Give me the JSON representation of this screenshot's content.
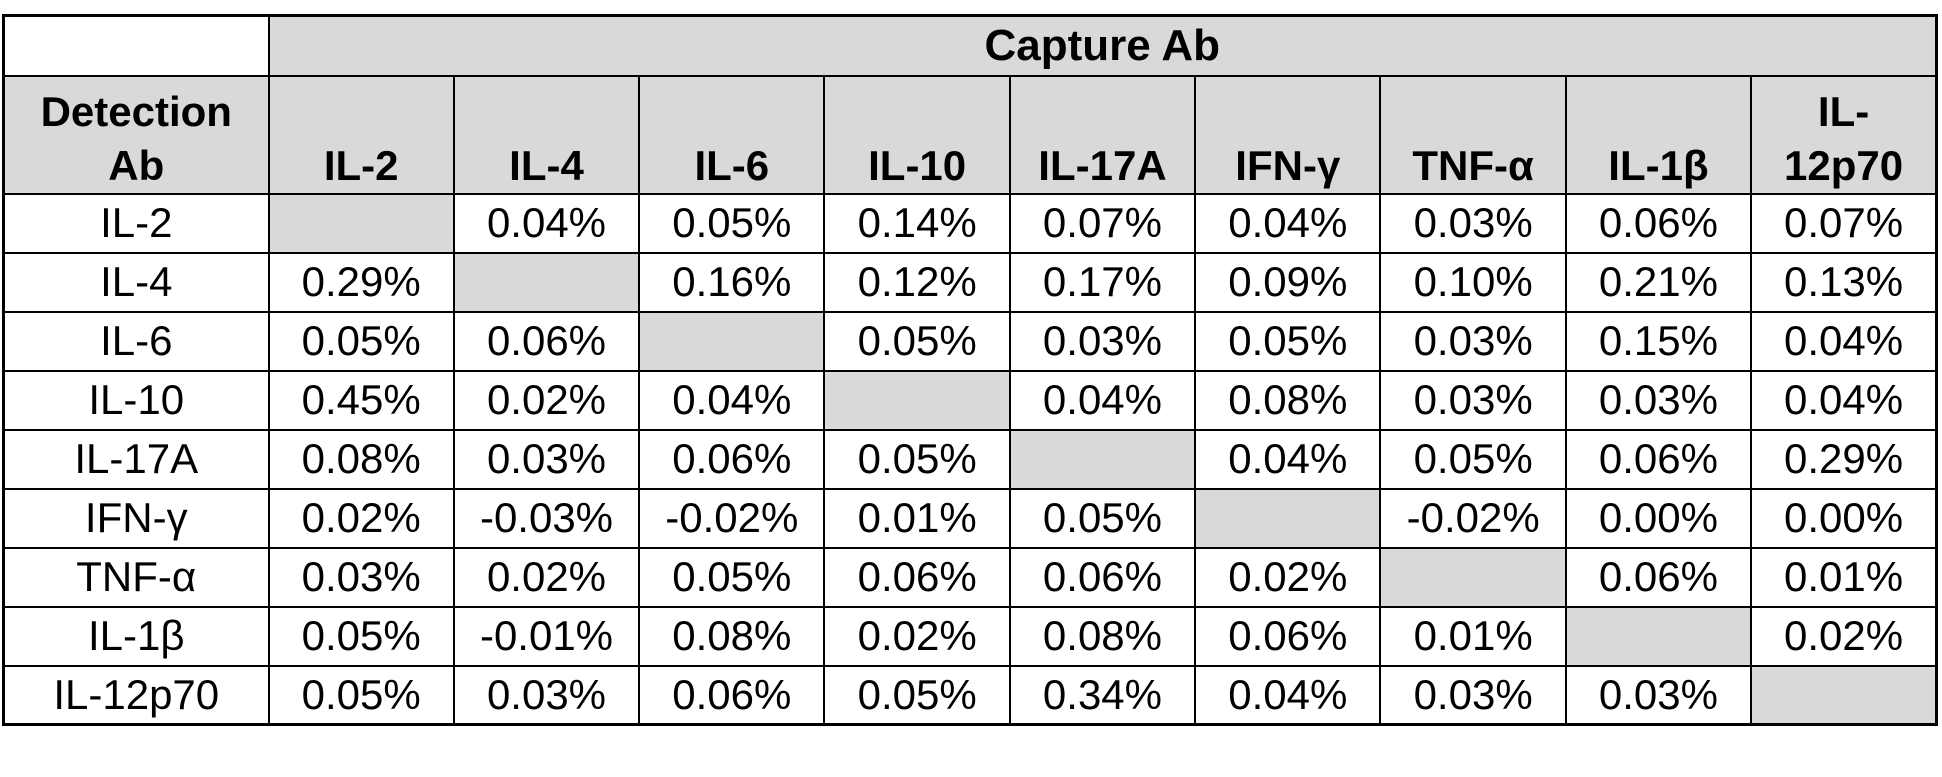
{
  "table": {
    "capture_ab_label": "Capture Ab",
    "detection_ab_label": "Detection\nAb",
    "column_headers": [
      "IL-2",
      "IL-4",
      "IL-6",
      "IL-10",
      "IL-17A",
      "IFN-γ",
      "TNF-α",
      "IL-1β",
      "IL-\n12p70"
    ],
    "rows": [
      {
        "label": "IL-2",
        "cells": [
          "",
          "0.04%",
          "0.05%",
          "0.14%",
          "0.07%",
          "0.04%",
          "0.03%",
          "0.06%",
          "0.07%"
        ]
      },
      {
        "label": "IL-4",
        "cells": [
          "0.29%",
          "",
          "0.16%",
          "0.12%",
          "0.17%",
          "0.09%",
          "0.10%",
          "0.21%",
          "0.13%"
        ]
      },
      {
        "label": "IL-6",
        "cells": [
          "0.05%",
          "0.06%",
          "",
          "0.05%",
          "0.03%",
          "0.05%",
          "0.03%",
          "0.15%",
          "0.04%"
        ]
      },
      {
        "label": "IL-10",
        "cells": [
          "0.45%",
          "0.02%",
          "0.04%",
          "",
          "0.04%",
          "0.08%",
          "0.03%",
          "0.03%",
          "0.04%"
        ]
      },
      {
        "label": "IL-17A",
        "cells": [
          "0.08%",
          "0.03%",
          "0.06%",
          "0.05%",
          "",
          "0.04%",
          "0.05%",
          "0.06%",
          "0.29%"
        ]
      },
      {
        "label": "IFN-γ",
        "cells": [
          "0.02%",
          "-0.03%",
          "-0.02%",
          "0.01%",
          "0.05%",
          "",
          "-0.02%",
          "0.00%",
          "0.00%"
        ]
      },
      {
        "label": "TNF-α",
        "cells": [
          "0.03%",
          "0.02%",
          "0.05%",
          "0.06%",
          "0.06%",
          "0.02%",
          "",
          "0.06%",
          "0.01%"
        ]
      },
      {
        "label": "IL-1β",
        "cells": [
          "0.05%",
          "-0.01%",
          "0.08%",
          "0.02%",
          "0.08%",
          "0.06%",
          "0.01%",
          "",
          "0.02%"
        ]
      },
      {
        "label": "IL-12p70",
        "cells": [
          "0.05%",
          "0.03%",
          "0.06%",
          "0.05%",
          "0.34%",
          "0.04%",
          "0.03%",
          "0.03%",
          ""
        ]
      }
    ],
    "colors": {
      "header_bg": "#d9d9d9",
      "diagonal_bg": "#d9d9d9",
      "cell_bg": "#ffffff",
      "border": "#000000",
      "text": "#000000"
    }
  },
  "chart_data": {
    "type": "table",
    "column_group_label": "Capture Ab",
    "row_group_label": "Detection Ab",
    "unit": "%",
    "columns": [
      "IL-2",
      "IL-4",
      "IL-6",
      "IL-10",
      "IL-17A",
      "IFN-γ",
      "TNF-α",
      "IL-1β",
      "IL-12p70"
    ],
    "rows": [
      "IL-2",
      "IL-4",
      "IL-6",
      "IL-10",
      "IL-17A",
      "IFN-γ",
      "TNF-α",
      "IL-1β",
      "IL-12p70"
    ],
    "values": [
      [
        null,
        0.04,
        0.05,
        0.14,
        0.07,
        0.04,
        0.03,
        0.06,
        0.07
      ],
      [
        0.29,
        null,
        0.16,
        0.12,
        0.17,
        0.09,
        0.1,
        0.21,
        0.13
      ],
      [
        0.05,
        0.06,
        null,
        0.05,
        0.03,
        0.05,
        0.03,
        0.15,
        0.04
      ],
      [
        0.45,
        0.02,
        0.04,
        null,
        0.04,
        0.08,
        0.03,
        0.03,
        0.04
      ],
      [
        0.08,
        0.03,
        0.06,
        0.05,
        null,
        0.04,
        0.05,
        0.06,
        0.29
      ],
      [
        0.02,
        -0.03,
        -0.02,
        0.01,
        0.05,
        null,
        -0.02,
        0.0,
        0.0
      ],
      [
        0.03,
        0.02,
        0.05,
        0.06,
        0.06,
        0.02,
        null,
        0.06,
        0.01
      ],
      [
        0.05,
        -0.01,
        0.08,
        0.02,
        0.08,
        0.06,
        0.01,
        null,
        0.02
      ],
      [
        0.05,
        0.03,
        0.06,
        0.05,
        0.34,
        0.04,
        0.03,
        0.03,
        null
      ]
    ],
    "diagonal_cells_shaded": true
  }
}
